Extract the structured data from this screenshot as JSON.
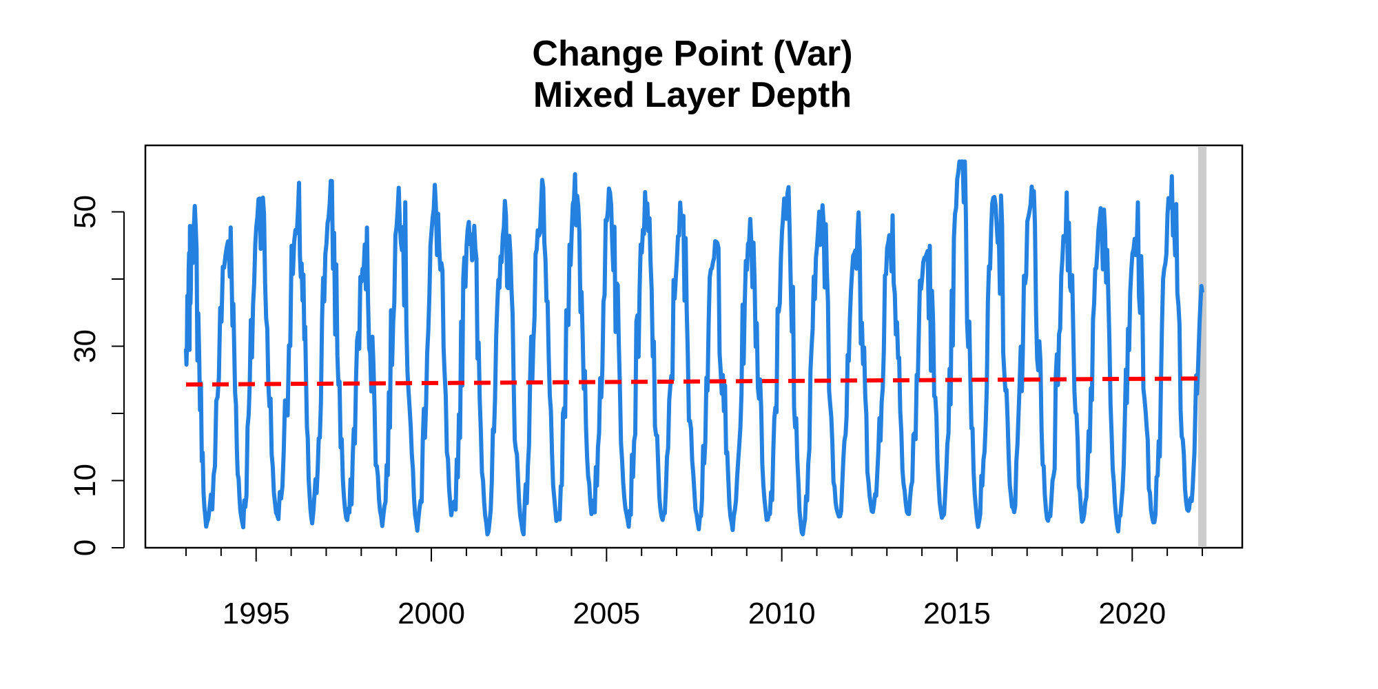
{
  "chart_data": {
    "type": "line",
    "title": "Change Point (Var)",
    "subtitle": "Mixed Layer Depth",
    "xlabel": "",
    "ylabel": "",
    "xlim": [
      1991,
      2022.5
    ],
    "ylim": [
      0,
      60
    ],
    "x_ticks_minor": [
      1993,
      1994,
      1995,
      1996,
      1997,
      1998,
      1999,
      2000,
      2001,
      2002,
      2003,
      2004,
      2005,
      2006,
      2007,
      2008,
      2009,
      2010,
      2011,
      2012,
      2013,
      2014,
      2015,
      2016,
      2017,
      2018,
      2019,
      2020,
      2021,
      2022
    ],
    "x_tick_labels": [
      "1995",
      "2000",
      "2005",
      "2010",
      "2015",
      "2020"
    ],
    "x_tick_values": [
      1995,
      2000,
      2005,
      2010,
      2015,
      2020
    ],
    "y_ticks": [
      0,
      10,
      20,
      30,
      40,
      50
    ],
    "y_tick_labels": [
      "0",
      "10",
      "",
      "30",
      "",
      "50"
    ],
    "series": [
      {
        "name": "Mixed Layer Depth",
        "color": "#2481e0",
        "style": "solid",
        "annual_peaks": [
          [
            1993.2,
            46
          ],
          [
            1994.2,
            45
          ],
          [
            1995.1,
            51
          ],
          [
            1996.2,
            49
          ],
          [
            1997.1,
            50
          ],
          [
            1998.1,
            43
          ],
          [
            1999.1,
            52
          ],
          [
            2000.1,
            51
          ],
          [
            2001.1,
            49
          ],
          [
            2002.1,
            48
          ],
          [
            2003.1,
            49
          ],
          [
            2004.1,
            53
          ],
          [
            2005.1,
            52
          ],
          [
            2006.1,
            49
          ],
          [
            2007.1,
            48
          ],
          [
            2008.1,
            44
          ],
          [
            2009.1,
            47
          ],
          [
            2010.1,
            51
          ],
          [
            2011.1,
            49
          ],
          [
            2012.1,
            45
          ],
          [
            2013.1,
            47
          ],
          [
            2014.1,
            44
          ],
          [
            2015.1,
            58
          ],
          [
            2016.1,
            54
          ],
          [
            2017.1,
            51
          ],
          [
            2018.1,
            48
          ],
          [
            2019.1,
            49
          ],
          [
            2020.1,
            46
          ],
          [
            2021.1,
            54
          ]
        ],
        "annual_troughs": [
          [
            1993.6,
            3
          ],
          [
            1994.6,
            4
          ],
          [
            1995.6,
            5
          ],
          [
            1996.6,
            4
          ],
          [
            1997.6,
            4
          ],
          [
            1998.6,
            4
          ],
          [
            1999.6,
            3
          ],
          [
            2000.6,
            5
          ],
          [
            2001.6,
            3
          ],
          [
            2002.6,
            3
          ],
          [
            2003.6,
            4
          ],
          [
            2004.6,
            5
          ],
          [
            2005.6,
            4
          ],
          [
            2006.6,
            4
          ],
          [
            2007.6,
            4
          ],
          [
            2008.6,
            3
          ],
          [
            2009.6,
            4
          ],
          [
            2010.6,
            2
          ],
          [
            2011.6,
            5
          ],
          [
            2012.6,
            5
          ],
          [
            2013.6,
            5
          ],
          [
            2014.6,
            4
          ],
          [
            2015.6,
            4
          ],
          [
            2016.6,
            6
          ],
          [
            2017.6,
            4
          ],
          [
            2018.6,
            4
          ],
          [
            2019.6,
            3
          ],
          [
            2020.6,
            4
          ],
          [
            2021.6,
            5
          ]
        ],
        "start": [
          1993.0,
          29
        ],
        "end": [
          2022.0,
          38
        ]
      },
      {
        "name": "Trend",
        "color": "#ff0000",
        "style": "dashed",
        "x": [
          1993.0,
          2022.0
        ],
        "y": [
          24.3,
          25.2
        ]
      }
    ],
    "change_point": {
      "x": 2022.0,
      "color": "#cccccc"
    }
  }
}
